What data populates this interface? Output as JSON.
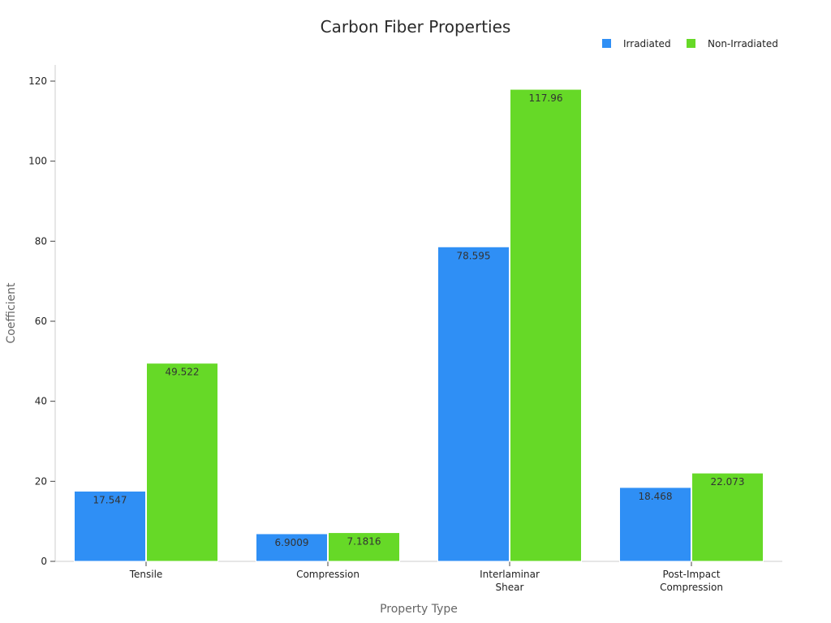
{
  "chart_data": {
    "type": "bar",
    "title": "Carbon Fiber Properties",
    "xlabel": "Property Type",
    "ylabel": "Coefficient",
    "categories": [
      [
        "Tensile"
      ],
      [
        "Compression"
      ],
      [
        "Interlaminar",
        "Shear"
      ],
      [
        "Post-Impact",
        "Compression"
      ]
    ],
    "series": [
      {
        "name": "Irradiated",
        "color": "#2f8ff5",
        "values": [
          17.547,
          6.9009,
          78.595,
          18.468
        ],
        "labels": [
          "17.547",
          "6.9009",
          "78.595",
          "18.468"
        ]
      },
      {
        "name": "Non-Irradiated",
        "color": "#66d927",
        "values": [
          49.522,
          7.1816,
          117.96,
          22.073
        ],
        "labels": [
          "49.522",
          "7.1816",
          "117.96",
          "22.073"
        ]
      }
    ],
    "ylim": [
      0,
      120
    ],
    "yticks": [
      0,
      20,
      40,
      60,
      80,
      100,
      120
    ],
    "grid": false,
    "legend_position": "top-right"
  }
}
